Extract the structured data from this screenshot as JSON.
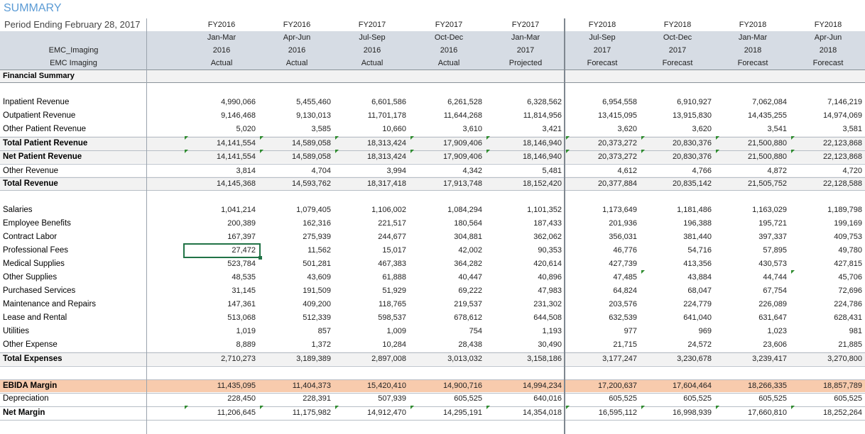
{
  "header": {
    "title": "SUMMARY",
    "period": "Period Ending February 28, 2017",
    "entity_line1": "EMC_Imaging",
    "entity_line2": "EMC Imaging",
    "section_label": "Financial Summary"
  },
  "columns": [
    {
      "fy": "FY2016",
      "period": "Jan-Mar",
      "year": "2016",
      "type": "Actual"
    },
    {
      "fy": "FY2016",
      "period": "Apr-Jun",
      "year": "2016",
      "type": "Actual"
    },
    {
      "fy": "FY2017",
      "period": "Jul-Sep",
      "year": "2016",
      "type": "Actual"
    },
    {
      "fy": "FY2017",
      "period": "Oct-Dec",
      "year": "2016",
      "type": "Actual"
    },
    {
      "fy": "FY2017",
      "period": "Jan-Mar",
      "year": "2017",
      "type": "Projected"
    },
    {
      "fy": "FY2018",
      "period": "Jul-Sep",
      "year": "2017",
      "type": "Forecast"
    },
    {
      "fy": "FY2018",
      "period": "Oct-Dec",
      "year": "2017",
      "type": "Forecast"
    },
    {
      "fy": "FY2018",
      "period": "Jan-Mar",
      "year": "2018",
      "type": "Forecast"
    },
    {
      "fy": "FY2018",
      "period": "Apr-Jun",
      "year": "2018",
      "type": "Forecast"
    }
  ],
  "rows": [
    {
      "label": "Inpatient Revenue",
      "bold": false,
      "values": [
        "4,990,066",
        "5,455,460",
        "6,601,586",
        "6,261,528",
        "6,328,562",
        "6,954,558",
        "6,910,927",
        "7,062,084",
        "7,146,219"
      ]
    },
    {
      "label": "Outpatient Revenue",
      "bold": false,
      "values": [
        "9,146,468",
        "9,130,013",
        "11,701,178",
        "11,644,268",
        "11,814,956",
        "13,415,095",
        "13,915,830",
        "14,435,255",
        "14,974,069"
      ]
    },
    {
      "label": "Other Patient Revenue",
      "bold": false,
      "values": [
        "5,020",
        "3,585",
        "10,660",
        "3,610",
        "3,421",
        "3,620",
        "3,620",
        "3,541",
        "3,581"
      ]
    },
    {
      "label": "Total Patient Revenue",
      "bold": true,
      "values": [
        "14,141,554",
        "14,589,058",
        "18,313,424",
        "17,909,406",
        "18,146,940",
        "20,373,272",
        "20,830,376",
        "21,500,880",
        "22,123,868"
      ]
    },
    {
      "label": "Net Patient Revenue",
      "bold": true,
      "values": [
        "14,141,554",
        "14,589,058",
        "18,313,424",
        "17,909,406",
        "18,146,940",
        "20,373,272",
        "20,830,376",
        "21,500,880",
        "22,123,868"
      ]
    },
    {
      "label": "Other Revenue",
      "bold": false,
      "values": [
        "3,814",
        "4,704",
        "3,994",
        "4,342",
        "5,481",
        "4,612",
        "4,766",
        "4,872",
        "4,720"
      ]
    },
    {
      "label": "Total Revenue",
      "bold": true,
      "values": [
        "14,145,368",
        "14,593,762",
        "18,317,418",
        "17,913,748",
        "18,152,420",
        "20,377,884",
        "20,835,142",
        "21,505,752",
        "22,128,588"
      ]
    },
    {
      "label": "Salaries",
      "bold": false,
      "values": [
        "1,041,214",
        "1,079,405",
        "1,106,002",
        "1,084,294",
        "1,101,352",
        "1,173,649",
        "1,181,486",
        "1,163,029",
        "1,189,798"
      ]
    },
    {
      "label": "Employee Benefits",
      "bold": false,
      "values": [
        "200,389",
        "162,316",
        "221,517",
        "180,564",
        "187,433",
        "201,936",
        "196,388",
        "195,721",
        "199,169"
      ]
    },
    {
      "label": "Contract Labor",
      "bold": false,
      "values": [
        "167,397",
        "275,939",
        "244,677",
        "304,881",
        "362,062",
        "356,031",
        "381,440",
        "397,337",
        "409,753"
      ]
    },
    {
      "label": "Professional Fees",
      "bold": false,
      "values": [
        "27,472",
        "11,562",
        "15,017",
        "42,002",
        "90,353",
        "46,776",
        "54,716",
        "57,895",
        "49,780"
      ]
    },
    {
      "label": "Medical Supplies",
      "bold": false,
      "values": [
        "523,784",
        "501,281",
        "467,383",
        "364,282",
        "420,614",
        "427,739",
        "413,356",
        "430,573",
        "427,815"
      ]
    },
    {
      "label": "Other Supplies",
      "bold": false,
      "values": [
        "48,535",
        "43,609",
        "61,888",
        "40,447",
        "40,896",
        "47,485",
        "43,884",
        "44,744",
        "45,706"
      ]
    },
    {
      "label": "Purchased Services",
      "bold": false,
      "values": [
        "31,145",
        "191,509",
        "51,929",
        "69,222",
        "47,983",
        "64,824",
        "68,047",
        "67,754",
        "72,696"
      ]
    },
    {
      "label": "Maintenance and Repairs",
      "bold": false,
      "values": [
        "147,361",
        "409,200",
        "118,765",
        "219,537",
        "231,302",
        "203,576",
        "224,779",
        "226,089",
        "224,786"
      ]
    },
    {
      "label": "Lease and Rental",
      "bold": false,
      "values": [
        "513,068",
        "512,339",
        "598,537",
        "678,612",
        "644,508",
        "632,539",
        "641,040",
        "631,647",
        "628,431"
      ]
    },
    {
      "label": "Utilities",
      "bold": false,
      "values": [
        "1,019",
        "857",
        "1,009",
        "754",
        "1,193",
        "977",
        "969",
        "1,023",
        "981"
      ]
    },
    {
      "label": "Other Expense",
      "bold": false,
      "values": [
        "8,889",
        "1,372",
        "10,284",
        "28,438",
        "30,490",
        "21,715",
        "24,572",
        "23,606",
        "21,885"
      ]
    },
    {
      "label": "Total Expenses",
      "bold": true,
      "values": [
        "2,710,273",
        "3,189,389",
        "2,897,008",
        "3,013,032",
        "3,158,186",
        "3,177,247",
        "3,230,678",
        "3,239,417",
        "3,270,800"
      ]
    },
    {
      "label": "EBIDA Margin",
      "bold": true,
      "values": [
        "11,435,095",
        "11,404,373",
        "15,420,410",
        "14,900,716",
        "14,994,234",
        "17,200,637",
        "17,604,464",
        "18,266,335",
        "18,857,789"
      ]
    },
    {
      "label": "Depreciation",
      "bold": false,
      "values": [
        "228,450",
        "228,391",
        "507,939",
        "605,525",
        "640,016",
        "605,525",
        "605,525",
        "605,525",
        "605,525"
      ]
    },
    {
      "label": "Net Margin",
      "bold": true,
      "values": [
        "11,206,645",
        "11,175,982",
        "14,912,470",
        "14,295,191",
        "14,354,018",
        "16,595,112",
        "16,998,939",
        "17,660,810",
        "18,252,264"
      ]
    }
  ],
  "colors": {
    "header_band": "#d6dce4",
    "ebida_band": "#f8cbad",
    "title": "#5b9bd5",
    "selection": "#217346"
  }
}
